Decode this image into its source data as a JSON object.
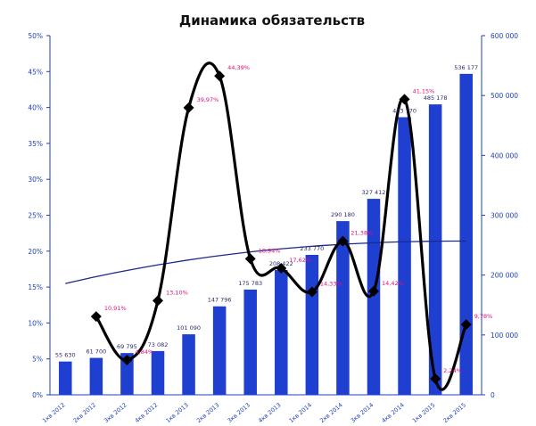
{
  "chart_data": {
    "type": "bar",
    "title": "Динамика обязательств",
    "xlabel": "",
    "ylabel": "",
    "categories": [
      "1кв 2012",
      "2кв 2012",
      "3кв 2012",
      "4кв 2012",
      "1кв 2013",
      "2кв 2013",
      "3кв 2013",
      "4кв 2013",
      "1кв 2014",
      "2кв 2014",
      "3кв 2014",
      "4кв 2014",
      "1кв 2015",
      "2кв 2015"
    ],
    "y_left_ticks": [
      "0%",
      "5%",
      "10%",
      "15%",
      "20%",
      "25%",
      "30%",
      "35%",
      "40%",
      "45%",
      "50%"
    ],
    "y_left_lim": [
      0,
      50
    ],
    "y_right_ticks": [
      "0",
      "100 000",
      "200 000",
      "300 000",
      "400 000",
      "500 000",
      "600 000"
    ],
    "y_right_lim": [
      0,
      600000
    ],
    "bars": {
      "axis": "right",
      "color": "#1f3fd0",
      "values": [
        55630,
        61700,
        69795,
        73082,
        101090,
        147796,
        175783,
        208422,
        233770,
        290180,
        327412,
        463770,
        485178,
        536177
      ],
      "labels": [
        "55 630",
        "61 700",
        "69 795",
        "73 082",
        "101 090",
        "147 796",
        "175 783",
        "208 422",
        "233 770",
        "290 180",
        "327 412",
        "463 770",
        "485 178",
        "536 177"
      ]
    },
    "line": {
      "axis": "left",
      "color": "#000000",
      "values": [
        null,
        10.9,
        4.84,
        13.1,
        39.97,
        44.39,
        18.94,
        17.62,
        14.33,
        21.38,
        14.42,
        41.15,
        2.24,
        9.78
      ],
      "labels": [
        "",
        "10,91%",
        "4,84%",
        "13,10%",
        "39,97%",
        "44,39%",
        "18,94%",
        "17,62%",
        "14,33%",
        "21,38%",
        "14,42%",
        "41,15%",
        "2,24%",
        "9,78%"
      ]
    },
    "trendline": {
      "axis": "left",
      "color": "#1a2a8a",
      "start": 15.5,
      "end": 21.4
    },
    "grid": false,
    "legend": "none"
  }
}
